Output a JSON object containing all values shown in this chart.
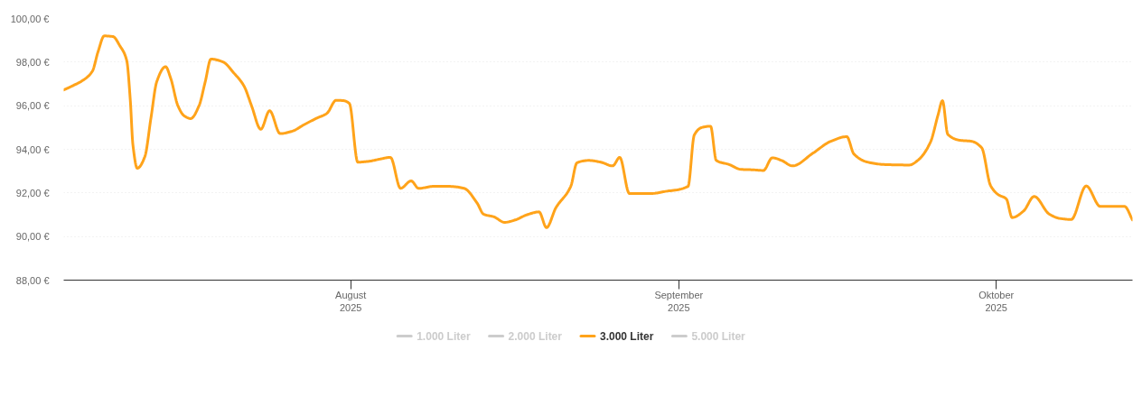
{
  "chart_data": {
    "type": "line",
    "xlim": [
      "2025-07-04T21:00",
      "2025-10-13T21:00"
    ],
    "xticks": [
      {
        "value": "2025-08-01",
        "label": "August\n2025"
      },
      {
        "value": "2025-09-01",
        "label": "September\n2025"
      },
      {
        "value": "2025-10-01",
        "label": "Oktober\n2025"
      }
    ],
    "ylim": [
      88,
      100
    ],
    "yticks": [
      {
        "value": 88,
        "label": "88,00 €"
      },
      {
        "value": 90,
        "label": "90,00 €"
      },
      {
        "value": 92,
        "label": "92,00 €"
      },
      {
        "value": 94,
        "label": "94,00 €"
      },
      {
        "value": 96,
        "label": "96,00 €"
      },
      {
        "value": 98,
        "label": "98,00 €"
      },
      {
        "value": 100,
        "label": "100,00 €"
      }
    ],
    "grid": "y",
    "legend": "bottom",
    "series": [
      {
        "name": "1.000 Liter",
        "color": "#cccccc"
      },
      {
        "name": "2.000 Liter",
        "color": "#cccccc"
      },
      {
        "name": "3.000 Liter",
        "color": "#ffa31a",
        "x": [
          "2025-07-04T21:00",
          "2025-07-05T21:00",
          "2025-07-06T14:00",
          "2025-07-07T14:00",
          "2025-07-08T03:00",
          "2025-07-08T17:00",
          "2025-07-09T13:00",
          "2025-07-10T04:00",
          "2025-07-10T20:00",
          "2025-07-11T04:00",
          "2025-07-11T10:00",
          "2025-07-11T20:00",
          "2025-07-12T13:00",
          "2025-07-13T03:00",
          "2025-07-13T16:00",
          "2025-07-14T12:00",
          "2025-07-15T00:00",
          "2025-07-15T16:00",
          "2025-07-16T06:00",
          "2025-07-16T21:00",
          "2025-07-17T16:00",
          "2025-07-18T06:00",
          "2025-07-18T19:00",
          "2025-07-19T23:00",
          "2025-07-20T22:00",
          "2025-07-21T22:00",
          "2025-07-22T15:00",
          "2025-07-23T12:00",
          "2025-07-24T08:00",
          "2025-07-25T08:00",
          "2025-07-26T11:00",
          "2025-07-27T15:00",
          "2025-07-28T18:00",
          "2025-07-29T18:00",
          "2025-07-30T15:00",
          "2025-07-31T08:00",
          "2025-07-31T21:00",
          "2025-08-01T16:00",
          "2025-08-02T17:00",
          "2025-08-03T18:00",
          "2025-08-04T18:00",
          "2025-08-05T17:00",
          "2025-08-06T17:00",
          "2025-08-07T10:00",
          "2025-08-08T20:00",
          "2025-08-10T07:00",
          "2025-08-11T17:00",
          "2025-08-12T23:00",
          "2025-08-13T13:00",
          "2025-08-14T13:00",
          "2025-08-15T13:00",
          "2025-08-16T13:00",
          "2025-08-17T16:00",
          "2025-08-18T19:00",
          "2025-08-19T12:00",
          "2025-08-20T09:00",
          "2025-08-21T19:00",
          "2025-08-22T09:00",
          "2025-08-23T12:00",
          "2025-08-24T15:00",
          "2025-08-25T18:00",
          "2025-08-26T10:00",
          "2025-08-27T08:00",
          "2025-08-29T08:00",
          "2025-08-30T18:00",
          "2025-09-01T21:00",
          "2025-09-02T11:00",
          "2025-09-03T04:00",
          "2025-09-04T00:00",
          "2025-09-04T13:00",
          "2025-09-05T17:00",
          "2025-09-06T21:00",
          "2025-09-08T00:00",
          "2025-09-09T00:00",
          "2025-09-09T20:00",
          "2025-09-10T17:00",
          "2025-09-11T18:00",
          "2025-09-13T16:00",
          "2025-09-15T09:00",
          "2025-09-16T21:00",
          "2025-09-17T13:00",
          "2025-09-18T19:00",
          "2025-09-20T12:00",
          "2025-09-22T19:00",
          "2025-09-23T15:00",
          "2025-09-24T19:00",
          "2025-09-25T12:00",
          "2025-09-25T22:00",
          "2025-09-26T10:00",
          "2025-09-27T15:00",
          "2025-09-28T15:00",
          "2025-09-29T15:00",
          "2025-09-30T11:00",
          "2025-10-01T04:00",
          "2025-10-01T23:00",
          "2025-10-02T12:00",
          "2025-10-03T14:00",
          "2025-10-04T14:00",
          "2025-10-06T00:00",
          "2025-10-07T00:00",
          "2025-10-08T02:00",
          "2025-10-09T12:00",
          "2025-10-10T20:00",
          "2025-10-13T03:00",
          "2025-10-13T21:00"
        ],
        "values": [
          96.72,
          96.95,
          97.13,
          97.58,
          98.48,
          99.2,
          99.17,
          98.76,
          98.07,
          96.27,
          94.2,
          93.13,
          93.66,
          95.45,
          97.1,
          97.79,
          97.24,
          96.0,
          95.54,
          95.41,
          96.0,
          97.1,
          98.14,
          98.0,
          97.52,
          96.9,
          96.0,
          94.92,
          95.77,
          94.72,
          94.83,
          95.14,
          95.42,
          95.65,
          96.25,
          96.23,
          96.1,
          93.41,
          93.45,
          93.55,
          93.63,
          92.21,
          92.55,
          92.21,
          92.3,
          92.3,
          92.21,
          91.52,
          91.03,
          90.9,
          90.65,
          90.76,
          91.0,
          91.13,
          90.41,
          91.31,
          92.3,
          93.38,
          93.49,
          93.41,
          93.24,
          93.63,
          91.97,
          91.97,
          92.07,
          92.3,
          94.65,
          95.0,
          95.06,
          93.49,
          93.31,
          93.08,
          93.06,
          93.03,
          93.61,
          93.49,
          93.24,
          93.82,
          94.37,
          94.58,
          93.79,
          93.42,
          93.3,
          93.28,
          93.51,
          94.34,
          95.58,
          96.23,
          94.69,
          94.41,
          94.37,
          94.07,
          92.34,
          91.93,
          91.72,
          90.87,
          91.17,
          91.84,
          91.03,
          90.83,
          90.78,
          92.32,
          91.38,
          91.38,
          90.76
        ]
      },
      {
        "name": "5.000 Liter",
        "color": "#cccccc"
      }
    ]
  }
}
